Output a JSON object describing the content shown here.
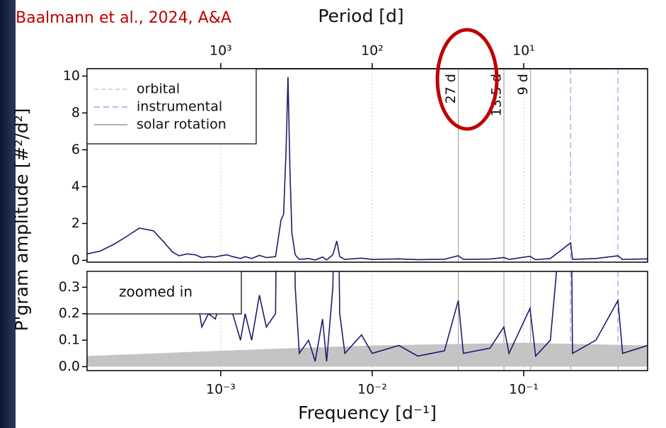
{
  "chart_data": [
    {
      "type": "line",
      "annotation": "Baalmann et al., 2024, A&A",
      "x2label": "Period [d]",
      "ylabel": "P'gram amplitude [#²/d²]",
      "x": [
        0.000131,
        0.00016,
        0.0002,
        0.00025,
        0.00029,
        0.00036,
        0.00042,
        0.00048,
        0.00053,
        0.0006,
        0.00068,
        0.00075,
        0.00083,
        0.00092,
        0.001,
        0.0011,
        0.0012,
        0.00135,
        0.00145,
        0.0016,
        0.0018,
        0.002,
        0.0023,
        0.0025,
        0.0026,
        0.0027,
        0.00278,
        0.00286,
        0.00295,
        0.0031,
        0.0033,
        0.0038,
        0.0042,
        0.0047,
        0.005,
        0.0055,
        0.00583,
        0.0061,
        0.0066,
        0.0085,
        0.01,
        0.015,
        0.02,
        0.03,
        0.037,
        0.04,
        0.06,
        0.074,
        0.08,
        0.11,
        0.12,
        0.15,
        0.204,
        0.21,
        0.3,
        0.419,
        0.45,
        0.658
      ],
      "xlim": [
        0.000131,
        0.658
      ],
      "x2ticks": [
        {
          "value": 1000,
          "label": "10³"
        },
        {
          "value": 100,
          "label": "10²"
        },
        {
          "value": 10,
          "label": "10¹"
        }
      ],
      "ylim": [
        -0.1,
        10.4
      ],
      "yticks": [
        0,
        2,
        4,
        6,
        8,
        10
      ],
      "grid": true,
      "series": [
        {
          "name": "",
          "color": "#1c1c6e",
          "values": [
            0.35,
            0.5,
            0.9,
            1.4,
            1.75,
            1.6,
            1.0,
            0.45,
            0.25,
            0.35,
            0.3,
            0.15,
            0.2,
            0.18,
            0.25,
            0.3,
            0.2,
            0.1,
            0.2,
            0.1,
            0.27,
            0.15,
            0.2,
            2.2,
            2.5,
            6,
            9.95,
            5,
            1.5,
            0.3,
            0.05,
            0.1,
            0.02,
            0.18,
            0.02,
            0.3,
            1.05,
            0.2,
            0.05,
            0.12,
            0.05,
            0.08,
            0.04,
            0.06,
            0.25,
            0.05,
            0.07,
            0.15,
            0.05,
            0.22,
            0.04,
            0.1,
            0.95,
            0.05,
            0.1,
            0.25,
            0.05,
            0.08
          ]
        }
      ],
      "legend": [
        {
          "name": "orbital",
          "color": "#c8c8c8",
          "dash": "6 4"
        },
        {
          "name": "instrumental",
          "color": "#9aa0ee",
          "dash": "8 5"
        },
        {
          "name": "solar rotation",
          "color": "#999999",
          "dash": ""
        }
      ],
      "solar_rotation_periods": [
        {
          "value": 27,
          "label": "27 d"
        },
        {
          "value": 13.5,
          "label": "13.5 d"
        },
        {
          "value": 9,
          "label": "9 d"
        }
      ],
      "instrumental_frequencies": [
        0.204,
        0.419
      ]
    },
    {
      "type": "line",
      "xlabel": "Frequency [d⁻¹]",
      "annotation": "zoomed in",
      "xlim": [
        0.000131,
        0.658
      ],
      "xticks": [
        {
          "value": 0.001,
          "label": "10⁻³"
        },
        {
          "value": 0.01,
          "label": "10⁻²"
        },
        {
          "value": 0.1,
          "label": "10⁻¹"
        }
      ],
      "ylim": [
        -0.015,
        0.36
      ],
      "yticks": [
        {
          "value": 0,
          "label": "0.0"
        },
        0.1,
        0.2,
        0.3
      ],
      "noise": {
        "color": "#c4c4c4",
        "x": [
          0.000131,
          0.001,
          0.003,
          0.01,
          0.1,
          0.658
        ],
        "values": [
          0.04,
          0.06,
          0.07,
          0.08,
          0.09,
          0.08
        ]
      }
    }
  ]
}
